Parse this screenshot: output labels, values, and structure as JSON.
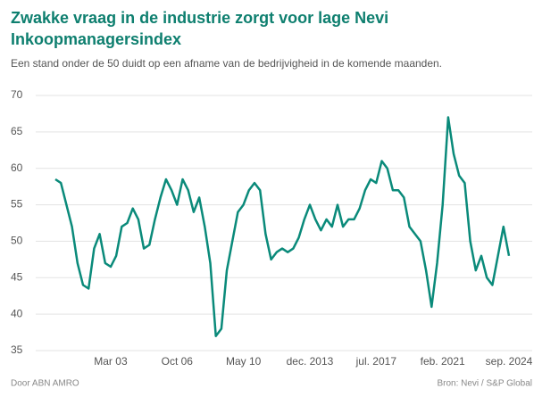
{
  "chart_data": {
    "type": "line",
    "title": "Zwakke vraag in de industrie zorgt voor lage Nevi Inkoopmanagersindex",
    "subtitle": "Een stand onder de 50 duidt op een afname van de bedrijvigheid in de komende maanden.",
    "source_left": "Door ABN AMRO",
    "source_right": "Bron: Nevi / S&P Global",
    "categories": [
      null,
      null,
      null,
      null,
      null,
      null,
      null,
      null,
      null,
      null,
      "Mar 03",
      null,
      null,
      null,
      null,
      null,
      null,
      null,
      null,
      null,
      null,
      null,
      "Oct 06",
      null,
      null,
      null,
      null,
      null,
      null,
      null,
      null,
      null,
      null,
      null,
      "May 10",
      null,
      null,
      null,
      null,
      null,
      null,
      null,
      null,
      null,
      null,
      null,
      "dec. 2013",
      null,
      null,
      null,
      null,
      null,
      null,
      null,
      null,
      null,
      null,
      null,
      "jul. 2017",
      null,
      null,
      null,
      null,
      null,
      null,
      null,
      null,
      null,
      null,
      null,
      "feb. 2021",
      null,
      null,
      null,
      null,
      null,
      null,
      null,
      null,
      null,
      null,
      null,
      "sep. 2024"
    ],
    "values": [
      58.5,
      58,
      55,
      52,
      47,
      44,
      43.5,
      49,
      51,
      47,
      46.5,
      48,
      52,
      52.5,
      54.5,
      53,
      49,
      49.5,
      53,
      56,
      58.5,
      57,
      55,
      58.5,
      57,
      54,
      56,
      52,
      47,
      37,
      38,
      46,
      50,
      54,
      55,
      57,
      58,
      57,
      51,
      47.5,
      48.5,
      49,
      48.5,
      49,
      50.5,
      53,
      55,
      53,
      51.5,
      53,
      52,
      55,
      52,
      53,
      53,
      54.5,
      57,
      58.5,
      58,
      61,
      60,
      57,
      57,
      56,
      52,
      51,
      50,
      46,
      41,
      47,
      55,
      67,
      62,
      59,
      58,
      50,
      46,
      48,
      45,
      44,
      48,
      52,
      48
    ],
    "color": "#0a8a7a",
    "ylim": [
      35,
      70
    ],
    "yticks": [
      35,
      40,
      45,
      50,
      55,
      60,
      65,
      70
    ],
    "grid": true
  }
}
